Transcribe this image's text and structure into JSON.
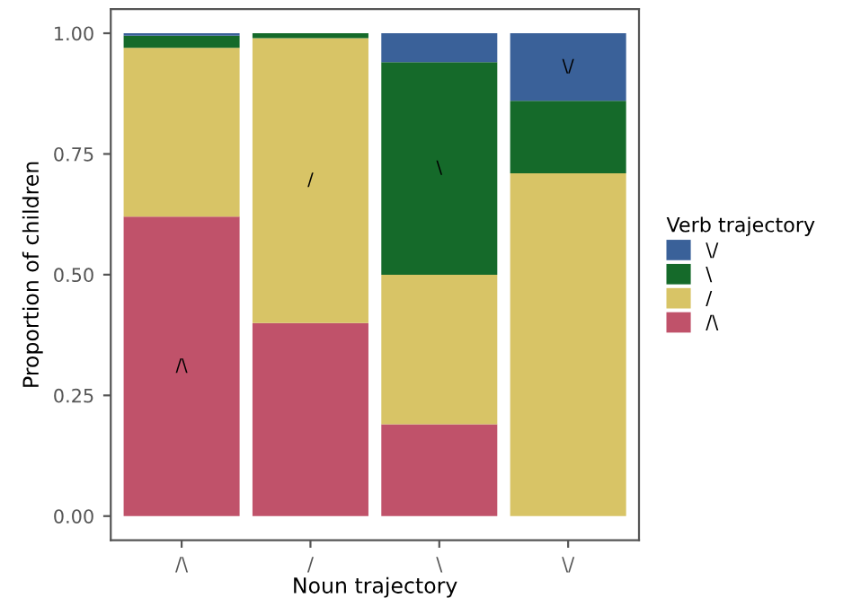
{
  "chart_data": {
    "type": "bar",
    "stacked": true,
    "xlabel": "Noun trajectory",
    "ylabel": "Proportion of children",
    "legend_title": "Verb trajectory",
    "legend": "right",
    "categories": [
      "/\\",
      "/",
      "\\",
      "\\/"
    ],
    "series": [
      {
        "name": "/\\",
        "color": "#c0526a",
        "values": [
          0.62,
          0.4,
          0.19,
          0
        ]
      },
      {
        "name": "/",
        "color": "#d8c466",
        "values": [
          0.35,
          0.59,
          0.31,
          0.71
        ]
      },
      {
        "name": "\\",
        "color": "#156a2a",
        "values": [
          0.025,
          0.01,
          0.44,
          0.15
        ]
      },
      {
        "name": "\\/",
        "color": "#3a6199",
        "values": [
          0.005,
          0,
          0.06,
          0.14
        ]
      }
    ],
    "ylim": [
      -0.05,
      1.05
    ],
    "yticks": [
      {
        "value": 0,
        "label": "0.00"
      },
      {
        "value": 0.25,
        "label": "0.25"
      },
      {
        "value": 0.5,
        "label": "0.50"
      },
      {
        "value": 0.75,
        "label": "0.75"
      },
      {
        "value": 1,
        "label": "1.00"
      }
    ],
    "grid": false,
    "annotations": [
      "/\\",
      "/",
      "\\",
      "\\/"
    ]
  }
}
